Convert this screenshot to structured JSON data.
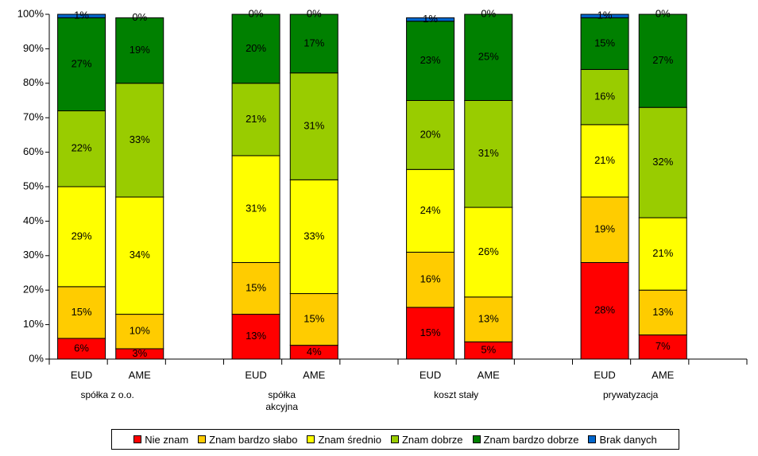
{
  "chart_data": {
    "type": "stacked_bar",
    "categories": [
      "EUD",
      "AME",
      null,
      "EUD",
      "AME",
      null,
      "EUD",
      "AME",
      null,
      "EUD",
      "AME",
      null
    ],
    "group_labels": [
      "spółka z o.o.",
      "spółka akcyjna",
      "koszt stały",
      "prywatyzacja"
    ],
    "series": [
      {
        "name": "Nie znam",
        "color": "#ff0000",
        "values": [
          6,
          3,
          null,
          13,
          4,
          null,
          15,
          5,
          null,
          28,
          7,
          null
        ],
        "value_labels": [
          "6%",
          "3%",
          null,
          "13%",
          "4%",
          null,
          "15%",
          "5%",
          null,
          "28%",
          "7%",
          null
        ]
      },
      {
        "name": "Znam bardzo słabo",
        "color": "#ffcc00",
        "values": [
          15,
          10,
          null,
          15,
          15,
          null,
          16,
          13,
          null,
          19,
          13,
          null
        ],
        "value_labels": [
          "15%",
          "10%",
          null,
          "15%",
          "15%",
          null,
          "16%",
          "13%",
          null,
          "19%",
          "13%",
          null
        ]
      },
      {
        "name": "Znam średnio",
        "color": "#ffff00",
        "values": [
          29,
          34,
          null,
          31,
          33,
          null,
          24,
          26,
          null,
          21,
          21,
          null
        ],
        "value_labels": [
          "29%",
          "34%",
          null,
          "31%",
          "33%",
          null,
          "24%",
          "26%",
          null,
          "21%",
          "21%",
          null
        ]
      },
      {
        "name": "Znam dobrze",
        "color": "#99cc00",
        "values": [
          22,
          33,
          null,
          21,
          31,
          null,
          20,
          31,
          null,
          16,
          32,
          null
        ],
        "value_labels": [
          "22%",
          "33%",
          null,
          "21%",
          "31%",
          null,
          "20%",
          "31%",
          null,
          "16%",
          "32%",
          null
        ]
      },
      {
        "name": "Znam bardzo dobrze",
        "color": "#008000",
        "values": [
          27,
          19,
          null,
          20,
          17,
          null,
          23,
          25,
          null,
          15,
          27,
          null
        ],
        "value_labels": [
          "27%",
          "19%",
          null,
          "20%",
          "17%",
          null,
          "23%",
          "25%",
          null,
          "15%",
          "27%",
          null
        ]
      },
      {
        "name": "Brak danych",
        "color": "#0066cc",
        "values": [
          1,
          0,
          null,
          0,
          0,
          null,
          1,
          0,
          null,
          1,
          0,
          null
        ],
        "value_labels": [
          "1%",
          "0%",
          null,
          "0%",
          "0%",
          null,
          "1%",
          "0%",
          null,
          "1%",
          "0%",
          null
        ]
      }
    ],
    "ylim": [
      0,
      100
    ],
    "yticks": [
      {
        "value": 0,
        "label": "0%"
      },
      {
        "value": 10,
        "label": "10%"
      },
      {
        "value": 20,
        "label": "20%"
      },
      {
        "value": 30,
        "label": "30%"
      },
      {
        "value": 40,
        "label": "40%"
      },
      {
        "value": 50,
        "label": "50%"
      },
      {
        "value": 60,
        "label": "60%"
      },
      {
        "value": 70,
        "label": "70%"
      },
      {
        "value": 80,
        "label": "80%"
      },
      {
        "value": 90,
        "label": "90%"
      },
      {
        "value": 100,
        "label": "100%"
      }
    ],
    "grid": false,
    "legend": "bottom"
  }
}
